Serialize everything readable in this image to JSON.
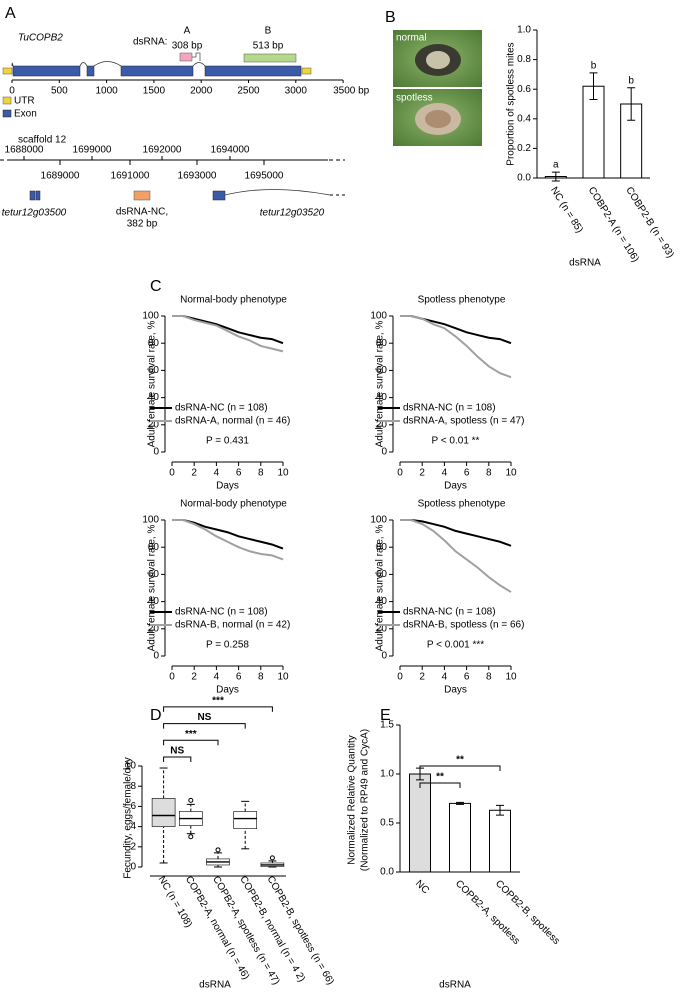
{
  "panels": [
    "A",
    "B",
    "C",
    "D",
    "E"
  ],
  "gene_diagram": {
    "gene": "TuCOPB2",
    "dsrna_label": "dsRNA:",
    "fragments": [
      {
        "name": "A",
        "size": "308 bp"
      },
      {
        "name": "B",
        "size": "513 bp"
      }
    ],
    "scale": [
      "0",
      "500",
      "1000",
      "1500",
      "2000",
      "2500",
      "3000",
      "3500 bp"
    ],
    "legend": [
      "UTR",
      "Exon"
    ],
    "scaffold": "scaffold 12",
    "coords_top": [
      "1688000",
      "1699000",
      "1692000",
      "1694000"
    ],
    "coords_bottom": [
      "1689000",
      "1691000",
      "1693000",
      "1695000"
    ],
    "genes": [
      "tetur12g03500",
      "dsRNA-NC,",
      "382 bp",
      "tetur12g03520"
    ]
  },
  "photos": [
    "normal",
    "spotless"
  ],
  "chart_data": [
    {
      "type": "bar",
      "xlabel": "dsRNA",
      "ylabel": "Proportion of spotless mites",
      "categories": [
        "NC (n = 85)",
        "COBP2-A (n = 106)",
        "COBP2-B (n = 93)"
      ],
      "values": [
        0.01,
        0.62,
        0.5
      ],
      "errors": [
        0.03,
        0.09,
        0.11
      ],
      "letters": [
        "a",
        "b",
        "b"
      ],
      "color": "#ffffff",
      "ylim": [
        0,
        1
      ],
      "yticks": [
        {
          "value": 0,
          "label": "0.0"
        },
        0.2,
        0.4,
        0.6,
        0.8,
        {
          "value": 1,
          "label": "1.0"
        }
      ]
    },
    {
      "type": "line",
      "title": "Normal-body phenotype",
      "xlabel": "Days",
      "ylabel": "Adult female survival rate, %",
      "x": [
        0,
        1,
        2,
        3,
        4,
        5,
        6,
        7,
        8,
        9,
        10
      ],
      "series": [
        {
          "name": "dsRNA-NC (n = 108)",
          "color": "#000000",
          "values": [
            100,
            100,
            98,
            96,
            94,
            91,
            88,
            86,
            84,
            83,
            80
          ]
        },
        {
          "name": "dsRNA-A, normal (n = 46)",
          "color": "#a0a0a0",
          "values": [
            100,
            100,
            97,
            95,
            93,
            89,
            85,
            82,
            78,
            76,
            74
          ]
        }
      ],
      "annotation": "P = 0.431",
      "xlim": [
        0,
        10
      ],
      "xticks": [
        0,
        2,
        4,
        6,
        8,
        10
      ],
      "ylim": [
        0,
        100
      ],
      "yticks": [
        0,
        20,
        40,
        60,
        80,
        100
      ]
    },
    {
      "type": "line",
      "title": "Spotless phenotype",
      "xlabel": "Days",
      "ylabel": "Adult female survival rate, %",
      "x": [
        0,
        1,
        2,
        3,
        4,
        5,
        6,
        7,
        8,
        9,
        10
      ],
      "series": [
        {
          "name": "dsRNA-NC (n = 108)",
          "color": "#000000",
          "values": [
            100,
            100,
            98,
            96,
            94,
            91,
            88,
            86,
            84,
            83,
            80
          ]
        },
        {
          "name": "dsRNA-A, spotless (n = 47)",
          "color": "#a0a0a0",
          "values": [
            100,
            100,
            98,
            94,
            91,
            85,
            78,
            70,
            63,
            58,
            55
          ]
        }
      ],
      "annotation": "P < 0.01 **",
      "xlim": [
        0,
        10
      ],
      "xticks": [
        0,
        2,
        4,
        6,
        8,
        10
      ],
      "ylim": [
        0,
        100
      ],
      "yticks": [
        0,
        20,
        40,
        60,
        80,
        100
      ]
    },
    {
      "type": "line",
      "title": "Normal-body phenotype",
      "xlabel": "Days",
      "ylabel": "Adult female survival rate, %",
      "x": [
        0,
        1,
        2,
        3,
        4,
        5,
        6,
        7,
        8,
        9,
        10
      ],
      "series": [
        {
          "name": "dsRNA-NC (n = 108)",
          "color": "#000000",
          "values": [
            100,
            100,
            98,
            95,
            93,
            91,
            88,
            86,
            84,
            82,
            79
          ]
        },
        {
          "name": "dsRNA-B, normal (n = 42)",
          "color": "#a0a0a0",
          "values": [
            100,
            100,
            97,
            93,
            88,
            84,
            80,
            77,
            75,
            74,
            71
          ]
        }
      ],
      "annotation": "P = 0.258",
      "xlim": [
        0,
        10
      ],
      "xticks": [
        0,
        2,
        4,
        6,
        8,
        10
      ],
      "ylim": [
        0,
        100
      ],
      "yticks": [
        0,
        20,
        40,
        60,
        80,
        100
      ]
    },
    {
      "type": "line",
      "title": "Spotless phenotype",
      "xlabel": "Days",
      "ylabel": "Adult female survival rate, %",
      "x": [
        0,
        1,
        2,
        3,
        4,
        5,
        6,
        7,
        8,
        9,
        10
      ],
      "series": [
        {
          "name": "dsRNA-NC (n = 108)",
          "color": "#000000",
          "values": [
            100,
            100,
            99,
            97,
            95,
            92,
            90,
            88,
            86,
            84,
            81
          ]
        },
        {
          "name": "dsRNA-B, spotless (n = 66)",
          "color": "#a0a0a0",
          "values": [
            100,
            100,
            97,
            92,
            85,
            77,
            71,
            65,
            58,
            52,
            47
          ]
        }
      ],
      "annotation": "P < 0.001 ***",
      "xlim": [
        0,
        10
      ],
      "xticks": [
        0,
        2,
        4,
        6,
        8,
        10
      ],
      "ylim": [
        0,
        100
      ],
      "yticks": [
        0,
        20,
        40,
        60,
        80,
        100
      ]
    },
    {
      "type": "box",
      "xlabel": "dsRNA",
      "ylabel": "Fecundity, eggs/female/day",
      "categories": [
        "NC (n = 108)",
        "COPB2-A, normal (n = 46)",
        "COPB2-A, spotless (n = 47)",
        "COPB2-B, normal (n = 4 2)",
        "COPB2-B, spotless (n = 66)"
      ],
      "min": [
        0.4,
        3.3,
        0,
        1.8,
        0
      ],
      "q1": [
        4,
        4.1,
        0.2,
        3.8,
        0.05
      ],
      "median": [
        5.1,
        4.8,
        0.5,
        4.8,
        0.2
      ],
      "q3": [
        6.8,
        5.5,
        0.8,
        5.5,
        0.4
      ],
      "max": [
        9.8,
        6.2,
        1.4,
        6.5,
        0.6
      ],
      "outliers": [
        [],
        [
          6.6,
          3
        ],
        [
          1.7
        ],
        [],
        [
          0.9
        ]
      ],
      "colors": [
        "#dddddd",
        "#ffffff",
        "#ffffff",
        "#ffffff",
        "#ffffff"
      ],
      "brackets": [
        {
          "groups": [
            0,
            1
          ],
          "label": "NS"
        },
        {
          "groups": [
            0,
            2
          ],
          "label": "***"
        },
        {
          "groups": [
            0,
            3
          ],
          "label": "NS"
        },
        {
          "groups": [
            0,
            4
          ],
          "label": "***"
        }
      ],
      "ylim": [
        0,
        10
      ],
      "yticks": [
        0,
        2,
        4,
        6,
        8,
        10
      ]
    },
    {
      "type": "bar",
      "xlabel": "dsRNA",
      "ylabel": [
        "Normalized Relative Quantity",
        "(Normalized to RP49 and CycA)"
      ],
      "categories": [
        "NC",
        "COPB2-A, spotless",
        "COPB2-B, spotless"
      ],
      "values": [
        1.0,
        0.7,
        0.63
      ],
      "errors": [
        0.06,
        0.01,
        0.05
      ],
      "colors": [
        "#dddddd",
        "#ffffff",
        "#ffffff"
      ],
      "brackets": [
        {
          "groups": [
            0,
            1
          ],
          "label": "**"
        },
        {
          "groups": [
            0,
            2
          ],
          "label": "**"
        }
      ],
      "ylim": [
        0,
        1.5
      ],
      "yticks": [
        {
          "value": 0,
          "label": "0.0"
        },
        0.5,
        {
          "value": 1,
          "label": "1.0"
        },
        1.5
      ]
    }
  ]
}
